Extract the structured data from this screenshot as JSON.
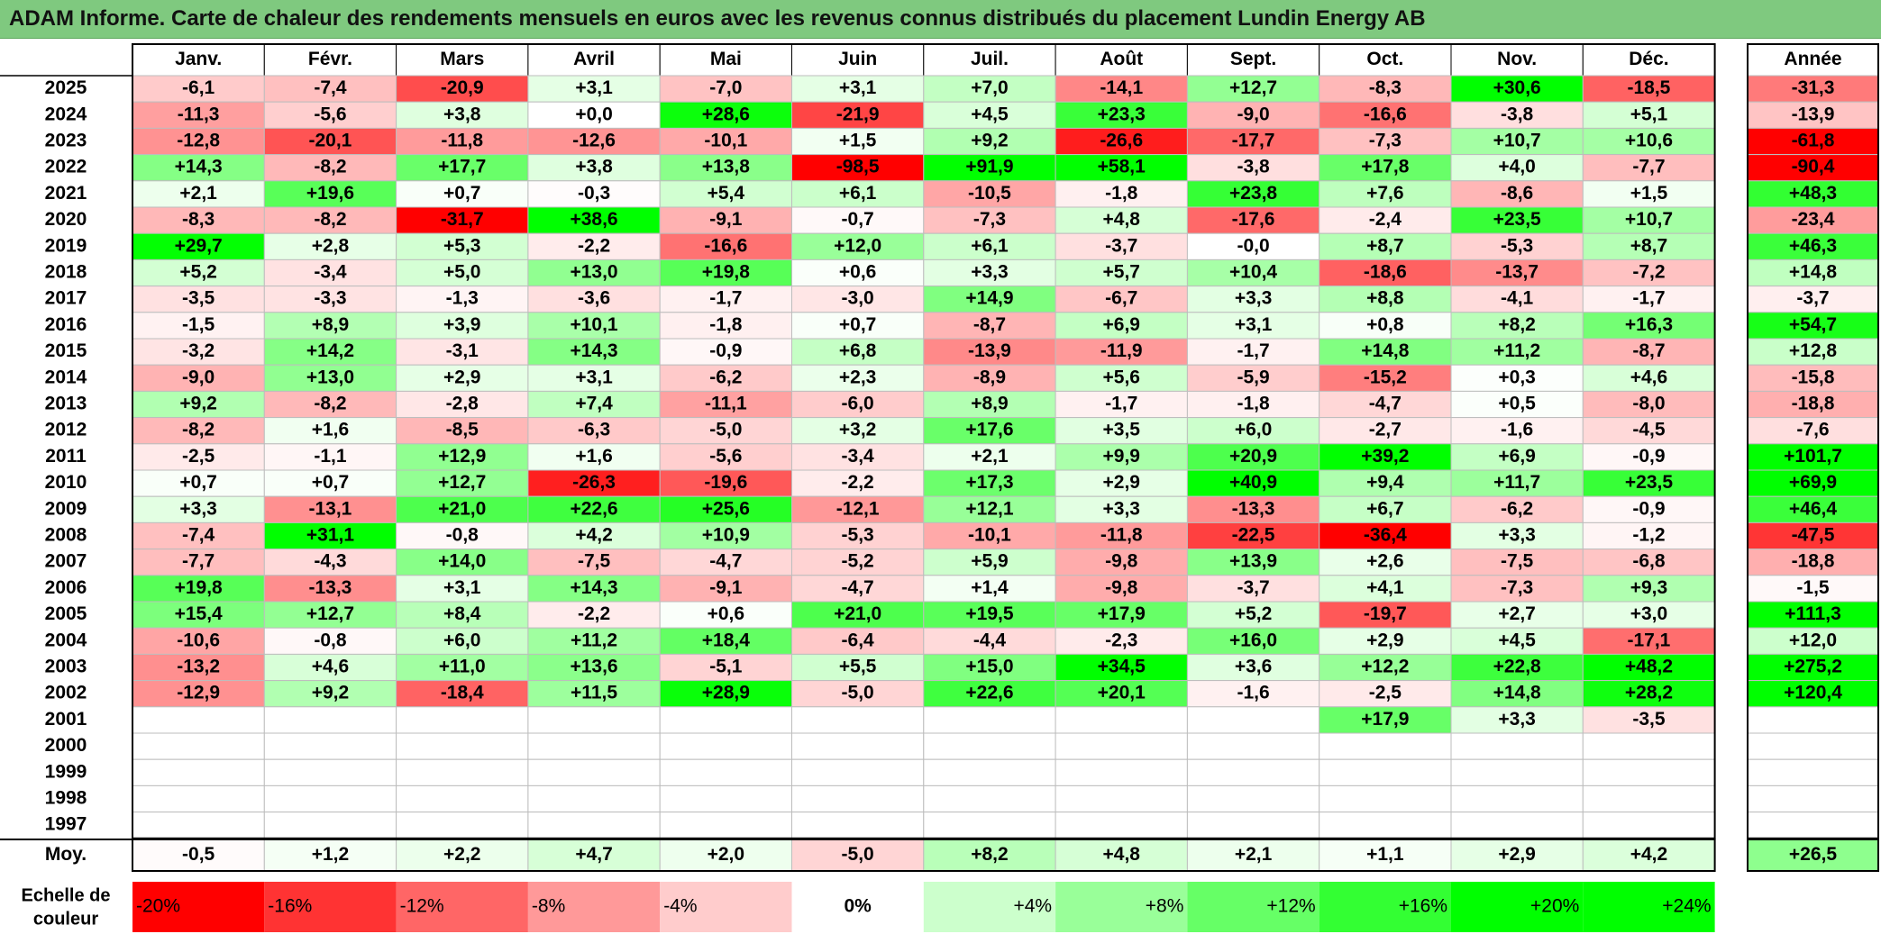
{
  "title": "ADAM Informe. Carte de chaleur des rendements mensuels en euros avec les revenus connus distribués du placement Lundin Energy AB",
  "chart_data": {
    "type": "heatmap",
    "title": "ADAM Informe. Carte de chaleur des rendements mensuels en euros avec les revenus connus distribués du placement Lundin Energy AB",
    "months": [
      "Janv.",
      "Févr.",
      "Mars",
      "Avril",
      "Mai",
      "Juin",
      "Juil.",
      "Août",
      "Sept.",
      "Oct.",
      "Nov.",
      "Déc."
    ],
    "year_header": "Année",
    "avg_label": "Moy.",
    "rows": [
      {
        "year": "2025",
        "values": [
          "-6,1",
          "-7,4",
          "-20,9",
          "+3,1",
          "-7,0",
          "+3,1",
          "+7,0",
          "-14,1",
          "+12,7",
          "-8,3",
          "+30,6",
          "-18,5"
        ],
        "annual": "-31,3"
      },
      {
        "year": "2024",
        "values": [
          "-11,3",
          "-5,6",
          "+3,8",
          "+0,0",
          "+28,6",
          "-21,9",
          "+4,5",
          "+23,3",
          "-9,0",
          "-16,6",
          "-3,8",
          "+5,1"
        ],
        "annual": "-13,9"
      },
      {
        "year": "2023",
        "values": [
          "-12,8",
          "-20,1",
          "-11,8",
          "-12,6",
          "-10,1",
          "+1,5",
          "+9,2",
          "-26,6",
          "-17,7",
          "-7,3",
          "+10,7",
          "+10,6"
        ],
        "annual": "-61,8"
      },
      {
        "year": "2022",
        "values": [
          "+14,3",
          "-8,2",
          "+17,7",
          "+3,8",
          "+13,8",
          "-98,5",
          "+91,9",
          "+58,1",
          "-3,8",
          "+17,8",
          "+4,0",
          "-7,7"
        ],
        "annual": "-90,4"
      },
      {
        "year": "2021",
        "values": [
          "+2,1",
          "+19,6",
          "+0,7",
          "-0,3",
          "+5,4",
          "+6,1",
          "-10,5",
          "-1,8",
          "+23,8",
          "+7,6",
          "-8,6",
          "+1,5"
        ],
        "annual": "+48,3"
      },
      {
        "year": "2020",
        "values": [
          "-8,3",
          "-8,2",
          "-31,7",
          "+38,6",
          "-9,1",
          "-0,7",
          "-7,3",
          "+4,8",
          "-17,6",
          "-2,4",
          "+23,5",
          "+10,7"
        ],
        "annual": "-23,4"
      },
      {
        "year": "2019",
        "values": [
          "+29,7",
          "+2,8",
          "+5,3",
          "-2,2",
          "-16,6",
          "+12,0",
          "+6,1",
          "-3,7",
          "-0,0",
          "+8,7",
          "-5,3",
          "+8,7"
        ],
        "annual": "+46,3"
      },
      {
        "year": "2018",
        "values": [
          "+5,2",
          "-3,4",
          "+5,0",
          "+13,0",
          "+19,8",
          "+0,6",
          "+3,3",
          "+5,7",
          "+10,4",
          "-18,6",
          "-13,7",
          "-7,2"
        ],
        "annual": "+14,8"
      },
      {
        "year": "2017",
        "values": [
          "-3,5",
          "-3,3",
          "-1,3",
          "-3,6",
          "-1,7",
          "-3,0",
          "+14,9",
          "-6,7",
          "+3,3",
          "+8,8",
          "-4,1",
          "-1,7"
        ],
        "annual": "-3,7"
      },
      {
        "year": "2016",
        "values": [
          "-1,5",
          "+8,9",
          "+3,9",
          "+10,1",
          "-1,8",
          "+0,7",
          "-8,7",
          "+6,9",
          "+3,1",
          "+0,8",
          "+8,2",
          "+16,3"
        ],
        "annual": "+54,7"
      },
      {
        "year": "2015",
        "values": [
          "-3,2",
          "+14,2",
          "-3,1",
          "+14,3",
          "-0,9",
          "+6,8",
          "-13,9",
          "-11,9",
          "-1,7",
          "+14,8",
          "+11,2",
          "-8,7"
        ],
        "annual": "+12,8"
      },
      {
        "year": "2014",
        "values": [
          "-9,0",
          "+13,0",
          "+2,9",
          "+3,1",
          "-6,2",
          "+2,3",
          "-8,9",
          "+5,6",
          "-5,9",
          "-15,2",
          "+0,3",
          "+4,6"
        ],
        "annual": "-15,8"
      },
      {
        "year": "2013",
        "values": [
          "+9,2",
          "-8,2",
          "-2,8",
          "+7,4",
          "-11,1",
          "-6,0",
          "+8,9",
          "-1,7",
          "-1,8",
          "-4,7",
          "+0,5",
          "-8,0"
        ],
        "annual": "-18,8"
      },
      {
        "year": "2012",
        "values": [
          "-8,2",
          "+1,6",
          "-8,5",
          "-6,3",
          "-5,0",
          "+3,2",
          "+17,6",
          "+3,5",
          "+6,0",
          "-2,7",
          "-1,6",
          "-4,5"
        ],
        "annual": "-7,6"
      },
      {
        "year": "2011",
        "values": [
          "-2,5",
          "-1,1",
          "+12,9",
          "+1,6",
          "-5,6",
          "-3,4",
          "+2,1",
          "+9,9",
          "+20,9",
          "+39,2",
          "+6,9",
          "-0,9"
        ],
        "annual": "+101,7"
      },
      {
        "year": "2010",
        "values": [
          "+0,7",
          "+0,7",
          "+12,7",
          "-26,3",
          "-19,6",
          "-2,2",
          "+17,3",
          "+2,9",
          "+40,9",
          "+9,4",
          "+11,7",
          "+23,5"
        ],
        "annual": "+69,9"
      },
      {
        "year": "2009",
        "values": [
          "+3,3",
          "-13,1",
          "+21,0",
          "+22,6",
          "+25,6",
          "-12,1",
          "+12,1",
          "+3,3",
          "-13,3",
          "+6,7",
          "-6,2",
          "-0,9"
        ],
        "annual": "+46,4"
      },
      {
        "year": "2008",
        "values": [
          "-7,4",
          "+31,1",
          "-0,8",
          "+4,2",
          "+10,9",
          "-5,3",
          "-10,1",
          "-11,8",
          "-22,5",
          "-36,4",
          "+3,3",
          "-1,2"
        ],
        "annual": "-47,5"
      },
      {
        "year": "2007",
        "values": [
          "-7,7",
          "-4,3",
          "+14,0",
          "-7,5",
          "-4,7",
          "-5,2",
          "+5,9",
          "-9,8",
          "+13,9",
          "+2,6",
          "-7,5",
          "-6,8"
        ],
        "annual": "-18,8"
      },
      {
        "year": "2006",
        "values": [
          "+19,8",
          "-13,3",
          "+3,1",
          "+14,3",
          "-9,1",
          "-4,7",
          "+1,4",
          "-9,8",
          "-3,7",
          "+4,1",
          "-7,3",
          "+9,3"
        ],
        "annual": "-1,5"
      },
      {
        "year": "2005",
        "values": [
          "+15,4",
          "+12,7",
          "+8,4",
          "-2,2",
          "+0,6",
          "+21,0",
          "+19,5",
          "+17,9",
          "+5,2",
          "-19,7",
          "+2,7",
          "+3,0"
        ],
        "annual": "+111,3"
      },
      {
        "year": "2004",
        "values": [
          "-10,6",
          "-0,8",
          "+6,0",
          "+11,2",
          "+18,4",
          "-6,4",
          "-4,4",
          "-2,3",
          "+16,0",
          "+2,9",
          "+4,5",
          "-17,1"
        ],
        "annual": "+12,0"
      },
      {
        "year": "2003",
        "values": [
          "-13,2",
          "+4,6",
          "+11,0",
          "+13,6",
          "-5,1",
          "+5,5",
          "+15,0",
          "+34,5",
          "+3,6",
          "+12,2",
          "+22,8",
          "+48,2"
        ],
        "annual": "+275,2"
      },
      {
        "year": "2002",
        "values": [
          "-12,9",
          "+9,2",
          "-18,4",
          "+11,5",
          "+28,9",
          "-5,0",
          "+22,6",
          "+20,1",
          "-1,6",
          "-2,5",
          "+14,8",
          "+28,2"
        ],
        "annual": "+120,4"
      },
      {
        "year": "2001",
        "values": [
          "",
          "",
          "",
          "",
          "",
          "",
          "",
          "",
          "",
          "+17,9",
          "+3,3",
          "-3,5"
        ],
        "annual": ""
      },
      {
        "year": "2000",
        "values": [
          "",
          "",
          "",
          "",
          "",
          "",
          "",
          "",
          "",
          "",
          "",
          ""
        ],
        "annual": ""
      },
      {
        "year": "1999",
        "values": [
          "",
          "",
          "",
          "",
          "",
          "",
          "",
          "",
          "",
          "",
          "",
          ""
        ],
        "annual": ""
      },
      {
        "year": "1998",
        "values": [
          "",
          "",
          "",
          "",
          "",
          "",
          "",
          "",
          "",
          "",
          "",
          ""
        ],
        "annual": ""
      },
      {
        "year": "1997",
        "values": [
          "",
          "",
          "",
          "",
          "",
          "",
          "",
          "",
          "",
          "",
          "",
          ""
        ],
        "annual": ""
      }
    ],
    "averages": [
      "-0,5",
      "+1,2",
      "+2,2",
      "+4,7",
      "+2,0",
      "-5,0",
      "+8,2",
      "+4,8",
      "+2,1",
      "+1,1",
      "+2,9",
      "+4,2"
    ],
    "annual_average": "+26,5",
    "scale_label": "Echelle de couleur",
    "scale": [
      {
        "label": "-20%",
        "value": -20
      },
      {
        "label": "-16%",
        "value": -16
      },
      {
        "label": "-12%",
        "value": -12
      },
      {
        "label": "-8%",
        "value": -8
      },
      {
        "label": "-4%",
        "value": -4
      },
      {
        "label": "0%",
        "value": 0
      },
      {
        "label": "+4%",
        "value": 4
      },
      {
        "label": "+8%",
        "value": 8
      },
      {
        "label": "+12%",
        "value": 12
      },
      {
        "label": "+16%",
        "value": 16
      },
      {
        "label": "+20%",
        "value": 20
      },
      {
        "label": "+24%",
        "value": 24
      }
    ],
    "colors": {
      "negative_max": "#ff0000",
      "neutral": "#ffffff",
      "positive_max": "#00ff00",
      "title_bar": "#7fc97f"
    }
  }
}
